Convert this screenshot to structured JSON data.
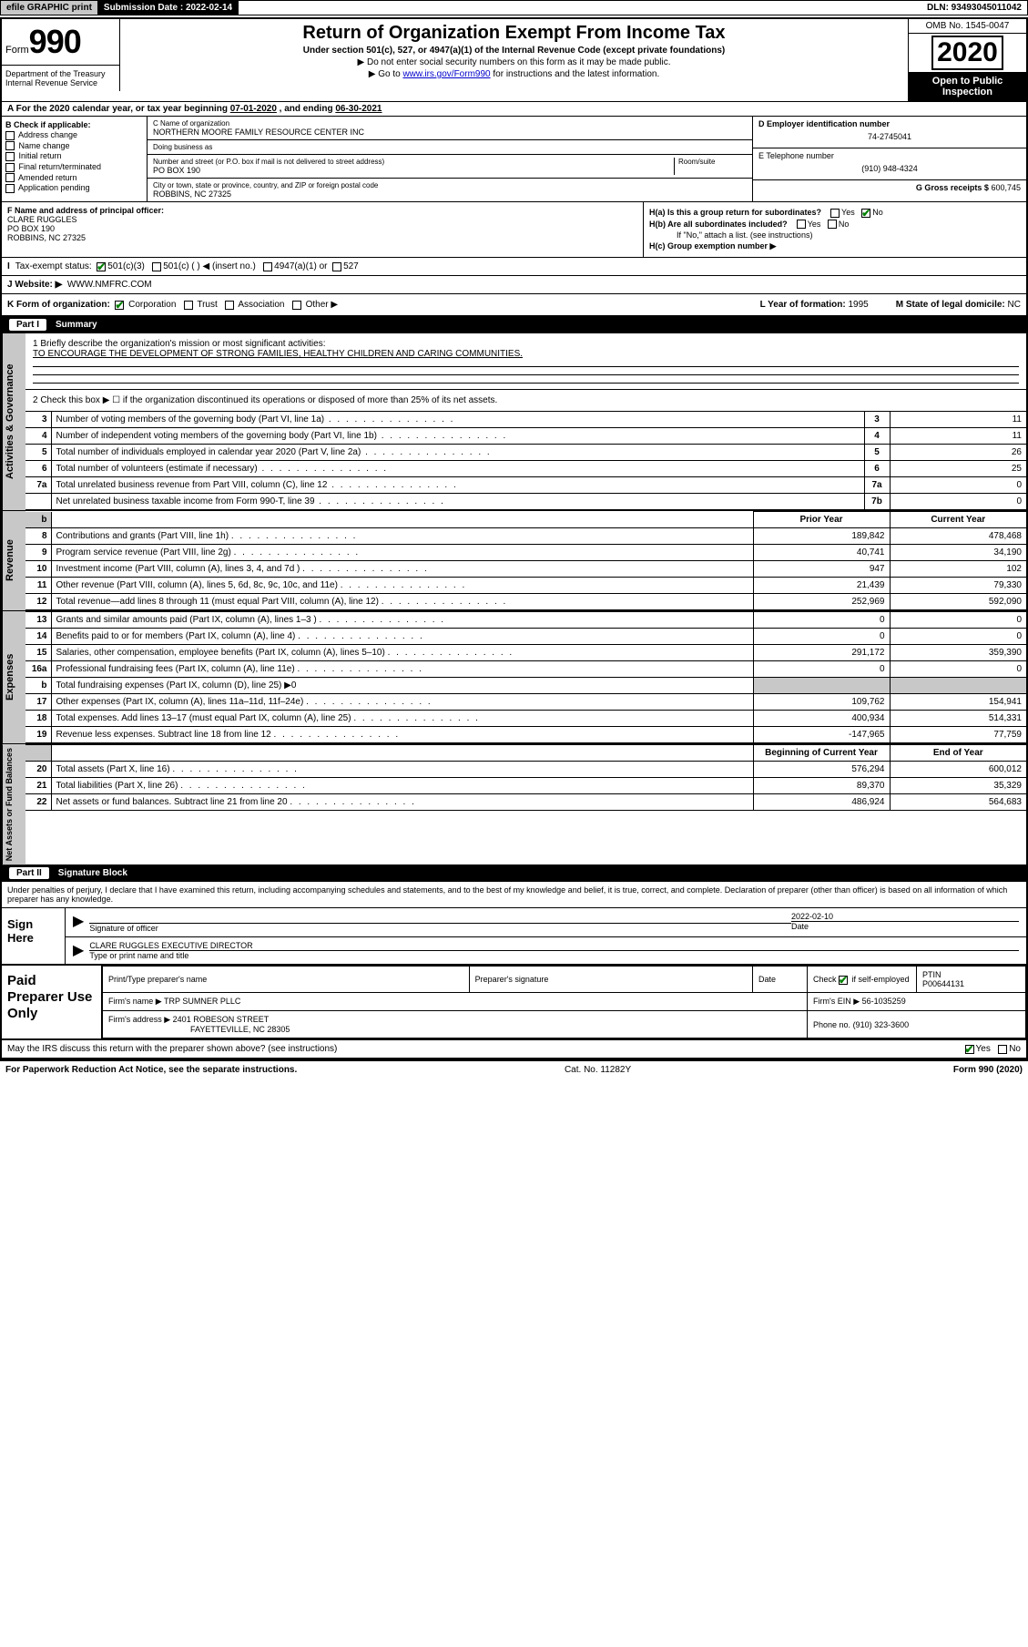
{
  "topbar": {
    "efile": "efile GRAPHIC print",
    "sub_label": "Submission Date :",
    "sub_date": "2022-02-14",
    "dln": "DLN: 93493045011042"
  },
  "header": {
    "form_word": "Form",
    "form_num": "990",
    "title": "Return of Organization Exempt From Income Tax",
    "subtitle": "Under section 501(c), 527, or 4947(a)(1) of the Internal Revenue Code (except private foundations)",
    "line1": "▶ Do not enter social security numbers on this form as it may be made public.",
    "line2_a": "▶ Go to ",
    "line2_link": "www.irs.gov/Form990",
    "line2_b": " for instructions and the latest information.",
    "dept": "Department of the Treasury\nInternal Revenue Service",
    "omb": "OMB No. 1545-0047",
    "year": "2020",
    "open": "Open to Public Inspection"
  },
  "period": {
    "text_a": "A For the 2020 calendar year, or tax year beginning ",
    "begin": "07-01-2020",
    "text_b": " , and ending ",
    "end": "06-30-2021"
  },
  "colB": {
    "hdr": "B Check if applicable:",
    "opts": [
      "Address change",
      "Name change",
      "Initial return",
      "Final return/terminated",
      "Amended return",
      "Application pending"
    ]
  },
  "colC": {
    "name_lbl": "C Name of organization",
    "name": "NORTHERN MOORE FAMILY RESOURCE CENTER INC",
    "dba_lbl": "Doing business as",
    "dba": "",
    "addr_lbl": "Number and street (or P.O. box if mail is not delivered to street address)",
    "room_lbl": "Room/suite",
    "addr": "PO BOX 190",
    "city_lbl": "City or town, state or province, country, and ZIP or foreign postal code",
    "city": "ROBBINS, NC  27325"
  },
  "colD": {
    "ein_lbl": "D Employer identification number",
    "ein": "74-2745041",
    "tel_lbl": "E Telephone number",
    "tel": "(910) 948-4324",
    "gross_lbl": "G Gross receipts $",
    "gross": "600,745"
  },
  "sectionF": {
    "lbl": "F Name and address of principal officer:",
    "name": "CLARE RUGGLES",
    "addr1": "PO BOX 190",
    "addr2": "ROBBINS, NC  27325"
  },
  "sectionH": {
    "ha": "H(a)  Is this a group return for subordinates?",
    "hb": "H(b)  Are all subordinates included?",
    "hb_note": "If \"No,\" attach a list. (see instructions)",
    "hc": "H(c)  Group exemption number ▶",
    "yes": "Yes",
    "no": "No"
  },
  "taxExempt": {
    "lbl": "Tax-exempt status:",
    "opts": [
      "501(c)(3)",
      "501(c) (   ) ◀ (insert no.)",
      "4947(a)(1) or",
      "527"
    ]
  },
  "website": {
    "lbl": "J   Website: ▶",
    "val": "WWW.NMFRC.COM"
  },
  "lineK": {
    "lbl": "K Form of organization:",
    "opts": [
      "Corporation",
      "Trust",
      "Association",
      "Other ▶"
    ],
    "year_lbl": "L Year of formation:",
    "year": "1995",
    "state_lbl": "M State of legal domicile:",
    "state": "NC"
  },
  "partI": {
    "num": "Part I",
    "title": "Summary"
  },
  "summary": {
    "q1_lbl": "1   Briefly describe the organization's mission or most significant activities:",
    "q1_val": "TO ENCOURAGE THE DEVELOPMENT OF STRONG FAMILIES, HEALTHY CHILDREN AND CARING COMMUNITIES.",
    "q2": "2   Check this box ▶ ☐  if the organization discontinued its operations or disposed of more than 25% of its net assets."
  },
  "govRows": [
    {
      "n": "3",
      "d": "Number of voting members of the governing body (Part VI, line 1a)",
      "b": "3",
      "v": "11"
    },
    {
      "n": "4",
      "d": "Number of independent voting members of the governing body (Part VI, line 1b)",
      "b": "4",
      "v": "11"
    },
    {
      "n": "5",
      "d": "Total number of individuals employed in calendar year 2020 (Part V, line 2a)",
      "b": "5",
      "v": "26"
    },
    {
      "n": "6",
      "d": "Total number of volunteers (estimate if necessary)",
      "b": "6",
      "v": "25"
    },
    {
      "n": "7a",
      "d": "Total unrelated business revenue from Part VIII, column (C), line 12",
      "b": "7a",
      "v": "0"
    },
    {
      "n": "",
      "d": "Net unrelated business taxable income from Form 990-T, line 39",
      "b": "7b",
      "v": "0"
    }
  ],
  "revHdr": {
    "b": "",
    "prior": "Prior Year",
    "curr": "Current Year"
  },
  "revRows": [
    {
      "n": "8",
      "d": "Contributions and grants (Part VIII, line 1h)",
      "p": "189,842",
      "c": "478,468"
    },
    {
      "n": "9",
      "d": "Program service revenue (Part VIII, line 2g)",
      "p": "40,741",
      "c": "34,190"
    },
    {
      "n": "10",
      "d": "Investment income (Part VIII, column (A), lines 3, 4, and 7d )",
      "p": "947",
      "c": "102"
    },
    {
      "n": "11",
      "d": "Other revenue (Part VIII, column (A), lines 5, 6d, 8c, 9c, 10c, and 11e)",
      "p": "21,439",
      "c": "79,330"
    },
    {
      "n": "12",
      "d": "Total revenue—add lines 8 through 11 (must equal Part VIII, column (A), line 12)",
      "p": "252,969",
      "c": "592,090"
    }
  ],
  "expRows": [
    {
      "n": "13",
      "d": "Grants and similar amounts paid (Part IX, column (A), lines 1–3 )",
      "p": "0",
      "c": "0"
    },
    {
      "n": "14",
      "d": "Benefits paid to or for members (Part IX, column (A), line 4)",
      "p": "0",
      "c": "0"
    },
    {
      "n": "15",
      "d": "Salaries, other compensation, employee benefits (Part IX, column (A), lines 5–10)",
      "p": "291,172",
      "c": "359,390"
    },
    {
      "n": "16a",
      "d": "Professional fundraising fees (Part IX, column (A), line 11e)",
      "p": "0",
      "c": "0"
    },
    {
      "n": "b",
      "d": "Total fundraising expenses (Part IX, column (D), line 25) ▶0",
      "p": "",
      "c": "",
      "grey": true
    },
    {
      "n": "17",
      "d": "Other expenses (Part IX, column (A), lines 11a–11d, 11f–24e)",
      "p": "109,762",
      "c": "154,941"
    },
    {
      "n": "18",
      "d": "Total expenses. Add lines 13–17 (must equal Part IX, column (A), line 25)",
      "p": "400,934",
      "c": "514,331"
    },
    {
      "n": "19",
      "d": "Revenue less expenses. Subtract line 18 from line 12",
      "p": "-147,965",
      "c": "77,759"
    }
  ],
  "netHdr": {
    "prior": "Beginning of Current Year",
    "curr": "End of Year"
  },
  "netRows": [
    {
      "n": "20",
      "d": "Total assets (Part X, line 16)",
      "p": "576,294",
      "c": "600,012"
    },
    {
      "n": "21",
      "d": "Total liabilities (Part X, line 26)",
      "p": "89,370",
      "c": "35,329"
    },
    {
      "n": "22",
      "d": "Net assets or fund balances. Subtract line 21 from line 20",
      "p": "486,924",
      "c": "564,683"
    }
  ],
  "vlabels": {
    "gov": "Activities & Governance",
    "rev": "Revenue",
    "exp": "Expenses",
    "net": "Net Assets or Fund Balances"
  },
  "partII": {
    "num": "Part II",
    "title": "Signature Block"
  },
  "penalty": "Under penalties of perjury, I declare that I have examined this return, including accompanying schedules and statements, and to the best of my knowledge and belief, it is true, correct, and complete. Declaration of preparer (other than officer) is based on all information of which preparer has any knowledge.",
  "sign": {
    "here": "Sign Here",
    "sig_lbl": "Signature of officer",
    "date_lbl": "Date",
    "date": "2022-02-10",
    "name": "CLARE RUGGLES  EXECUTIVE DIRECTOR",
    "name_lbl": "Type or print name and title"
  },
  "paid": {
    "title": "Paid Preparer Use Only",
    "h1": "Print/Type preparer's name",
    "h2": "Preparer's signature",
    "h3": "Date",
    "h4_a": "Check",
    "h4_b": "if self-employed",
    "h5": "PTIN",
    "ptin": "P00644131",
    "firm_lbl": "Firm's name    ▶",
    "firm": "TRP SUMNER PLLC",
    "ein_lbl": "Firm's EIN ▶",
    "ein": "56-1035259",
    "addr_lbl": "Firm's address ▶",
    "addr1": "2401 ROBESON STREET",
    "addr2": "FAYETTEVILLE, NC  28305",
    "phone_lbl": "Phone no.",
    "phone": "(910) 323-3600"
  },
  "discuss": {
    "q": "May the IRS discuss this return with the preparer shown above? (see instructions)",
    "yes": "Yes",
    "no": "No"
  },
  "footer": {
    "left": "For Paperwork Reduction Act Notice, see the separate instructions.",
    "mid": "Cat. No. 11282Y",
    "right": "Form 990 (2020)"
  }
}
